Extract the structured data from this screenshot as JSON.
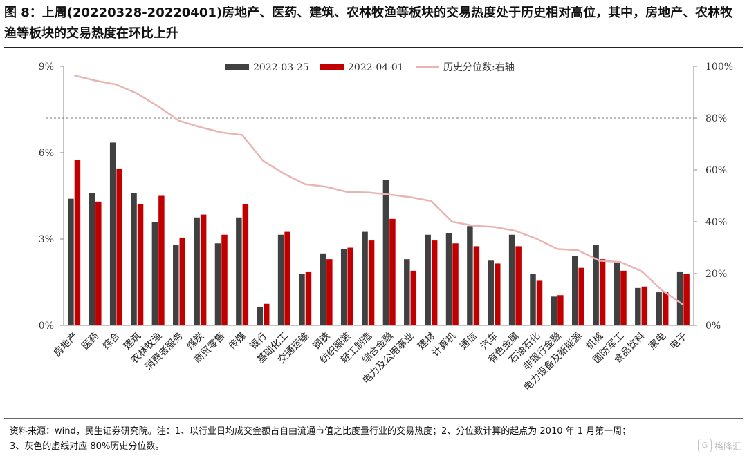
{
  "title": "图 8：上周(20220328-20220401)房地产、医药、建筑、农林牧渔等板块的交易热度处于历史相对高位，其中，房地产、农林牧渔等板块的交易热度在环比上升",
  "footnote_line1": "资料来源：wind，民生证券研究院。注：1、以行业日均成交金额占自由流通市值之比度量行业的交易热度；2、分位数计算的起点为 2010 年 1 月第一周；",
  "footnote_line2": "3、灰色的虚线对应 80%历史分位数。",
  "watermark": "格隆汇",
  "chart_data": {
    "type": "bar",
    "categories": [
      "房地产",
      "医药",
      "综合",
      "建筑",
      "农林牧渔",
      "消费者服务",
      "煤炭",
      "商贸零售",
      "传媒",
      "银行",
      "基础化工",
      "交通运输",
      "钢铁",
      "纺织服装",
      "轻工制造",
      "综合金融",
      "电力及公用事业",
      "建材",
      "计算机",
      "通信",
      "汽车",
      "有色金属",
      "石油石化",
      "非银行金融",
      "电力设备及新能源",
      "机械",
      "国防军工",
      "食品饮料",
      "家电",
      "电子"
    ],
    "series": [
      {
        "name": "2022-03-25",
        "axis": "left",
        "type": "bar",
        "color": "#404040",
        "values": [
          4.4,
          4.6,
          6.35,
          4.6,
          3.6,
          2.8,
          3.75,
          2.85,
          3.75,
          0.65,
          3.15,
          1.8,
          2.5,
          2.65,
          3.25,
          5.05,
          2.3,
          3.15,
          3.2,
          3.45,
          2.25,
          3.15,
          1.8,
          1.0,
          2.4,
          2.8,
          2.2,
          1.3,
          1.15,
          1.85
        ]
      },
      {
        "name": "2022-04-01",
        "axis": "left",
        "type": "bar",
        "color": "#c00000",
        "values": [
          5.75,
          4.3,
          5.45,
          4.2,
          4.5,
          3.05,
          3.85,
          3.15,
          4.2,
          0.75,
          3.25,
          1.85,
          2.3,
          2.7,
          2.95,
          3.7,
          1.9,
          2.95,
          2.85,
          2.75,
          2.15,
          2.75,
          1.55,
          1.05,
          2.0,
          2.3,
          1.9,
          1.35,
          1.15,
          1.8
        ]
      },
      {
        "name": "历史分位数:右轴",
        "axis": "right",
        "type": "line",
        "color": "#e8b4b4",
        "values": [
          96.5,
          94.5,
          93,
          89.5,
          84.5,
          79,
          76.5,
          74.5,
          73.5,
          63.5,
          58.5,
          54.5,
          53.5,
          51.5,
          51.3,
          50.5,
          49.5,
          48,
          40,
          38.5,
          38,
          36.5,
          33.5,
          29.5,
          29,
          25,
          24.5,
          21,
          13.5,
          8
        ]
      }
    ],
    "y_left": {
      "min": 0,
      "max": 9,
      "ticks": [
        0,
        3,
        6,
        9
      ],
      "tick_labels": [
        "0%",
        "3%",
        "6%",
        "9%"
      ]
    },
    "y_right": {
      "min": 0,
      "max": 100,
      "ticks": [
        0,
        20,
        40,
        60,
        80,
        100
      ],
      "tick_labels": [
        "0%",
        "20%",
        "40%",
        "60%",
        "80%",
        "100%"
      ]
    },
    "reference_line": {
      "axis": "right",
      "value": 80,
      "style": "dashed",
      "color": "#777777"
    },
    "legend_position": "top-center",
    "grid": false
  }
}
